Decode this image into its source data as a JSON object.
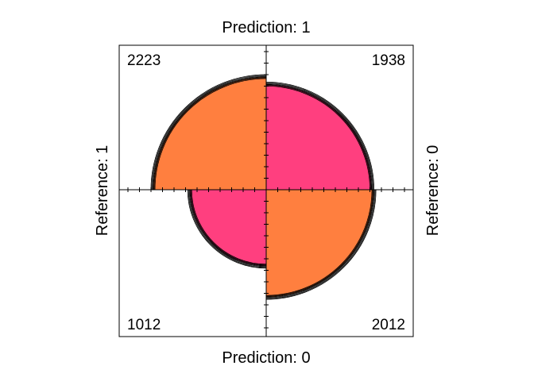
{
  "chart_data": {
    "type": "fourfold",
    "labels": {
      "top": "Prediction: 1",
      "bottom": "Prediction: 0",
      "left": "Reference: 1",
      "right": "Reference: 0"
    },
    "cells": [
      {
        "quadrant": "top-left",
        "prediction": "1",
        "reference": "1",
        "count": 2223,
        "label": "2223",
        "color": "#FF7F3F"
      },
      {
        "quadrant": "top-right",
        "prediction": "1",
        "reference": "0",
        "count": 1938,
        "label": "1938",
        "color": "#FF3F7F"
      },
      {
        "quadrant": "bottom-left",
        "prediction": "0",
        "reference": "1",
        "count": 1012,
        "label": "1012",
        "color": "#FF3F7F"
      },
      {
        "quadrant": "bottom-right",
        "prediction": "0",
        "reference": "0",
        "count": 2012,
        "label": "2012",
        "color": "#FF7F3F"
      }
    ],
    "confidence_rings": true,
    "axis_ticks": true
  }
}
